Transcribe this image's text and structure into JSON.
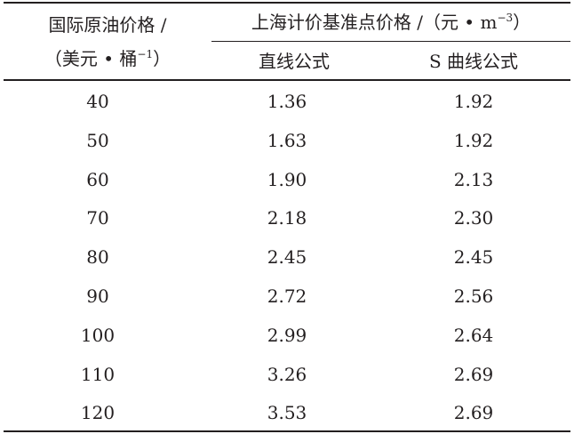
{
  "table": {
    "header": {
      "col1_line1": "国际原油价格 /",
      "col1_line2_pre": "（美元 • 桶",
      "col1_line2_sup": "−1",
      "col1_line2_post": "）",
      "group_pre": "上海计价基准点价格 /（元 • m",
      "group_sup": "−3",
      "group_post": "）",
      "col2": "直线公式",
      "col3": "S 曲线公式"
    },
    "rows": [
      {
        "price": "40",
        "linear": "1.36",
        "scurve": "1.92"
      },
      {
        "price": "50",
        "linear": "1.63",
        "scurve": "1.92"
      },
      {
        "price": "60",
        "linear": "1.90",
        "scurve": "2.13"
      },
      {
        "price": "70",
        "linear": "2.18",
        "scurve": "2.30"
      },
      {
        "price": "80",
        "linear": "2.45",
        "scurve": "2.45"
      },
      {
        "price": "90",
        "linear": "2.72",
        "scurve": "2.56"
      },
      {
        "price": "100",
        "linear": "2.99",
        "scurve": "2.64"
      },
      {
        "price": "110",
        "linear": "3.26",
        "scurve": "2.69"
      },
      {
        "price": "120",
        "linear": "3.53",
        "scurve": "2.69"
      }
    ]
  }
}
